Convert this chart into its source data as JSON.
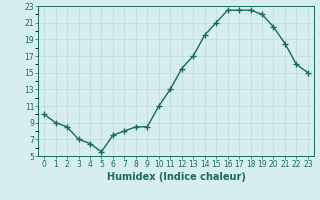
{
  "x": [
    0,
    1,
    2,
    3,
    4,
    5,
    6,
    7,
    8,
    9,
    10,
    11,
    12,
    13,
    14,
    15,
    16,
    17,
    18,
    19,
    20,
    21,
    22,
    23
  ],
  "y": [
    10.0,
    9.0,
    8.5,
    7.0,
    6.5,
    5.5,
    7.5,
    8.0,
    8.5,
    8.5,
    11.0,
    13.0,
    15.5,
    17.0,
    19.5,
    21.0,
    22.5,
    22.5,
    22.5,
    22.0,
    20.5,
    18.5,
    16.0,
    15.0
  ],
  "line_color": "#1a6b5a",
  "marker": "+",
  "marker_size": 4,
  "bg_color": "#d6efee",
  "grid_major_color": "#c0dedd",
  "grid_minor_color": "#d0e8e7",
  "xlabel": "Humidex (Indice chaleur)",
  "xlim": [
    -0.5,
    23.5
  ],
  "ylim": [
    5,
    23
  ],
  "yticks": [
    5,
    7,
    9,
    11,
    13,
    15,
    17,
    19,
    21,
    23
  ],
  "xticks": [
    0,
    1,
    2,
    3,
    4,
    5,
    6,
    7,
    8,
    9,
    10,
    11,
    12,
    13,
    14,
    15,
    16,
    17,
    18,
    19,
    20,
    21,
    22,
    23
  ],
  "tick_fontsize": 5.5,
  "xlabel_fontsize": 7,
  "line_width": 1.0,
  "marker_ew": 1.0
}
